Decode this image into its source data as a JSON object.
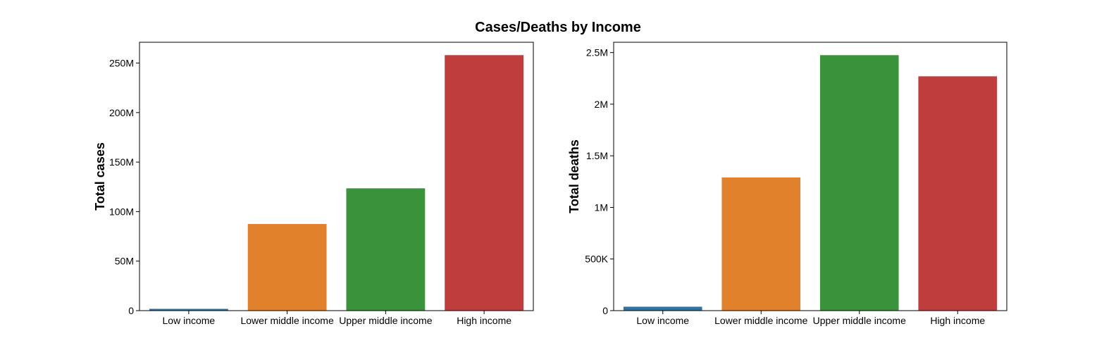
{
  "suptitle": "Cases/Deaths by Income",
  "colors": {
    "low": "#3274a1",
    "lower_middle": "#e1812c",
    "upper_middle": "#3a923a",
    "high": "#c03d3e"
  },
  "chart_data": [
    {
      "type": "bar",
      "title": "",
      "xlabel": "",
      "ylabel": "Total cases",
      "categories": [
        "Low income",
        "Lower middle income",
        "Upper middle income",
        "High income"
      ],
      "values": [
        1800000,
        87500000,
        123500000,
        258000000
      ],
      "ylim": [
        0,
        271000000
      ],
      "yticks": [
        {
          "value": 0,
          "label": "0"
        },
        {
          "value": 50000000,
          "label": "50M"
        },
        {
          "value": 100000000,
          "label": "100M"
        },
        {
          "value": 150000000,
          "label": "150M"
        },
        {
          "value": 200000000,
          "label": "200M"
        },
        {
          "value": 250000000,
          "label": "250M"
        }
      ],
      "grid": false,
      "legend": "none"
    },
    {
      "type": "bar",
      "title": "",
      "xlabel": "",
      "ylabel": "Total deaths",
      "categories": [
        "Low income",
        "Lower middle income",
        "Upper middle income",
        "High income"
      ],
      "values": [
        38000,
        1290000,
        2475000,
        2270000
      ],
      "ylim": [
        0,
        2600000
      ],
      "yticks": [
        {
          "value": 0,
          "label": "0"
        },
        {
          "value": 500000,
          "label": "500K"
        },
        {
          "value": 1000000,
          "label": "1M"
        },
        {
          "value": 1500000,
          "label": "1.5M"
        },
        {
          "value": 2000000,
          "label": "2M"
        },
        {
          "value": 2500000,
          "label": "2.5M"
        }
      ],
      "grid": false,
      "legend": "none"
    }
  ]
}
